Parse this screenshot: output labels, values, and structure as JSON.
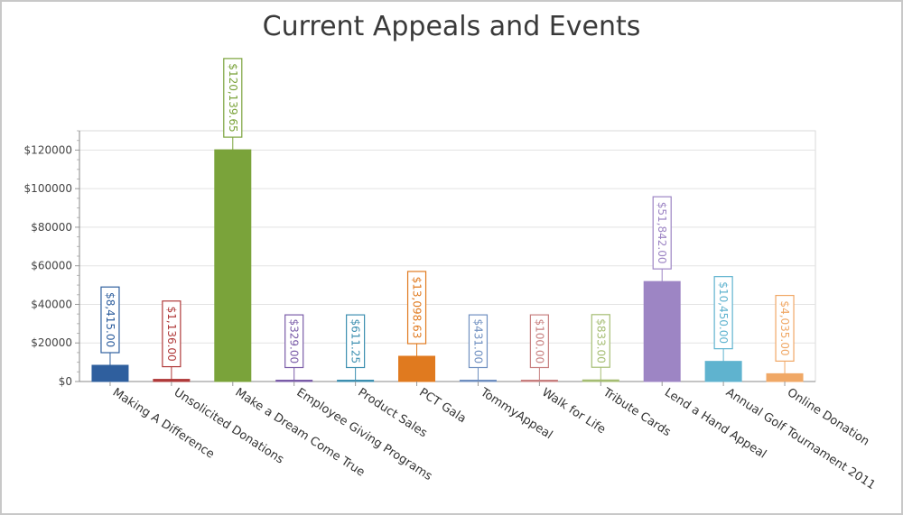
{
  "chart_data": {
    "type": "bar",
    "title": "Current Appeals and Events",
    "xlabel": "",
    "ylabel": "",
    "ylim": [
      0,
      130000
    ],
    "yticks": [
      0,
      20000,
      40000,
      60000,
      80000,
      100000,
      120000
    ],
    "ytick_labels": [
      "$0",
      "$20000",
      "$40000",
      "$60000",
      "$80000",
      "$100000",
      "$120000"
    ],
    "grid": true,
    "legend": "none",
    "categories": [
      "Making A Difference",
      "Unsolicited Donations",
      "Make a Dream Come True",
      "Employee Giving Programs",
      "Product Sales",
      "PCT Gala",
      "TommyAppeal",
      "Walk for Life",
      "Tribute Cards",
      "Lend a Hand Appeal",
      "Annual Golf Tournament 2011",
      "Online Donation"
    ],
    "values": [
      8415,
      1136,
      120139.65,
      329,
      611.25,
      13098.63,
      431,
      100,
      833,
      51842,
      10450,
      4035
    ],
    "data_labels": [
      "$8,415.00",
      "$1,136.00",
      "$120,139.65",
      "$329.00",
      "$611.25",
      "$13,098.63",
      "$431.00",
      "$100.00",
      "$833.00",
      "$51,842.00",
      "$10,450.00",
      "$4,035.00"
    ],
    "colors": [
      "#2f5f9e",
      "#b03a3a",
      "#7aa33a",
      "#7a5ca8",
      "#3d8fb0",
      "#e07a1f",
      "#6f8fc0",
      "#c77f7f",
      "#a5bd73",
      "#9d85c4",
      "#5fb3cf",
      "#f0a866"
    ]
  }
}
